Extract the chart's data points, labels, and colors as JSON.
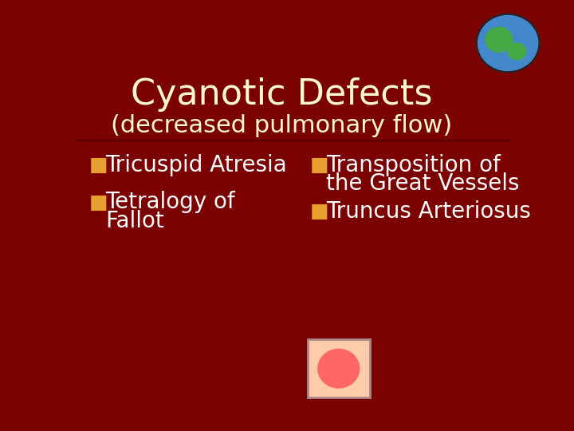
{
  "background_color": "#7B0000",
  "title_text": "Cyanotic Defects",
  "subtitle_text": "(decreased pulmonary flow)",
  "title_color": "#FFFACD",
  "subtitle_color": "#FFFACD",
  "title_fontsize": 32,
  "subtitle_fontsize": 22,
  "bullet_color": "#FFFFFF",
  "bullet_marker_color": "#E8A030",
  "bullet_fontsize": 20,
  "left_bullet_1": "Tricuspid Atresia",
  "left_bullet_2_line1": "Tetralogy of",
  "left_bullet_2_line2": "Fallot",
  "right_bullet_1_line1": "Transposition of",
  "right_bullet_1_line2": "the Great Vessels",
  "right_bullet_2": "Truncus Arteriosus",
  "figsize": [
    7.2,
    5.4
  ],
  "dpi": 100
}
